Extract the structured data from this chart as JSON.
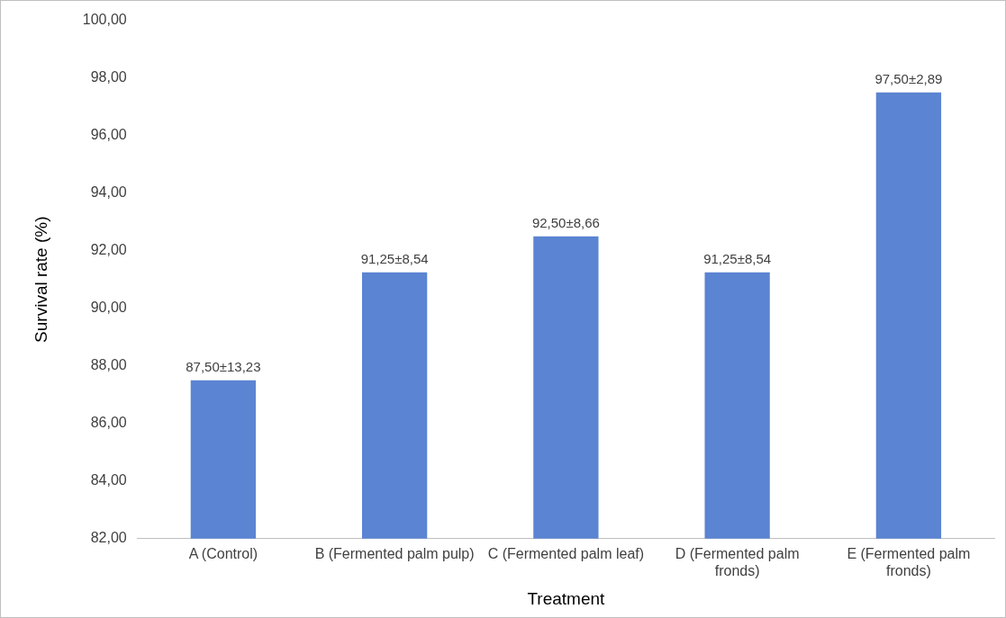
{
  "chart_data": {
    "type": "bar",
    "xlabel": "Treatment",
    "ylabel": "Survival rate (%)",
    "categories": [
      "A (Control)",
      "B (Fermented palm pulp)",
      "C (Fermented palm leaf)",
      "D (Fermented palm fronds)",
      "E (Fermented palm fronds)"
    ],
    "values": [
      87.5,
      91.25,
      92.5,
      91.25,
      97.5
    ],
    "value_labels": [
      "87,50±13,23",
      "91,25±8,54",
      "92,50±8,66",
      "91,25±8,54",
      "97,50±2,89"
    ],
    "color": "#5b84d2",
    "ylim": [
      82,
      100
    ],
    "yticks": [
      {
        "value": 82,
        "label": "82,00"
      },
      {
        "value": 84,
        "label": "84,00"
      },
      {
        "value": 86,
        "label": "86,00"
      },
      {
        "value": 88,
        "label": "88,00"
      },
      {
        "value": 90,
        "label": "90,00"
      },
      {
        "value": 92,
        "label": "92,00"
      },
      {
        "value": 94,
        "label": "94,00"
      },
      {
        "value": 96,
        "label": "96,00"
      },
      {
        "value": 98,
        "label": "98,00"
      },
      {
        "value": 100,
        "label": "100,00"
      }
    ],
    "grid": false,
    "legend": false
  }
}
